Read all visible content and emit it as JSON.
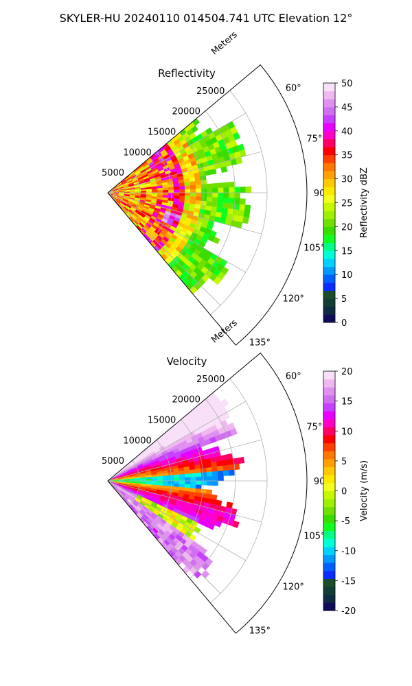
{
  "figure_title": "SKYLER-HU  20240110  014504.741 UTC Elevation 12°",
  "chart_data": [
    {
      "type": "heatmap",
      "subtype": "polar-sector (PPI)",
      "title": "Reflectivity",
      "radial_label": "Meters",
      "radial_ticks": [
        "5000",
        "10000",
        "15000",
        "20000",
        "25000"
      ],
      "angle_ticks": [
        "60°",
        "75°",
        "90°",
        "105°",
        "120°",
        "135°"
      ],
      "angle_range_deg": [
        50,
        140
      ],
      "range_max_m": 25000,
      "grid": true,
      "colorbar": {
        "label": "Reflectivity dBZ",
        "min": 0,
        "max": 50,
        "ticks": [
          "0",
          "5",
          "10",
          "15",
          "20",
          "25",
          "30",
          "35",
          "40",
          "45",
          "50"
        ],
        "colors": [
          "#0d0d5a",
          "#102a3f",
          "#133e33",
          "#1a4d2a",
          "#0a2cff",
          "#0060ff",
          "#0099ff",
          "#00d0ff",
          "#00ffd8",
          "#00ff88",
          "#10ff20",
          "#3bdc00",
          "#70e000",
          "#9cf000",
          "#c8f800",
          "#f4ff20",
          "#ffe800",
          "#ffc800",
          "#ffa000",
          "#ff7800",
          "#ff4000",
          "#ff0000",
          "#ff0066",
          "#ff00c8",
          "#e800ff",
          "#c840ff",
          "#d070f0",
          "#e090f0",
          "#f0b8f0",
          "#f8e0f8"
        ]
      }
    },
    {
      "type": "heatmap",
      "subtype": "polar-sector (PPI)",
      "title": "Velocity",
      "radial_label": "Meters",
      "radial_ticks": [
        "5000",
        "10000",
        "15000",
        "20000",
        "25000"
      ],
      "angle_ticks": [
        "60°",
        "75°",
        "90°",
        "105°",
        "120°",
        "135°"
      ],
      "angle_range_deg": [
        50,
        140
      ],
      "range_max_m": 25000,
      "grid": true,
      "colorbar": {
        "label": "Velocity (m/s)",
        "min": -20,
        "max": 20,
        "ticks": [
          "-20",
          "-15",
          "-10",
          "-5",
          "0",
          "5",
          "10",
          "15",
          "20"
        ],
        "colors": [
          "#0d0d5a",
          "#102a3f",
          "#133e33",
          "#1a4d2a",
          "#0a2cff",
          "#0060ff",
          "#0099ff",
          "#00d0ff",
          "#00ffd8",
          "#00ff88",
          "#10ff20",
          "#3bdc00",
          "#70e000",
          "#9cf000",
          "#c8f800",
          "#f4ff20",
          "#ffe800",
          "#ffc800",
          "#ffa000",
          "#ff7800",
          "#ff4000",
          "#ff0000",
          "#ff0066",
          "#ff00c8",
          "#e800ff",
          "#c840ff",
          "#d070f0",
          "#e090f0",
          "#f0b8f0",
          "#f8e0f8"
        ]
      }
    }
  ]
}
